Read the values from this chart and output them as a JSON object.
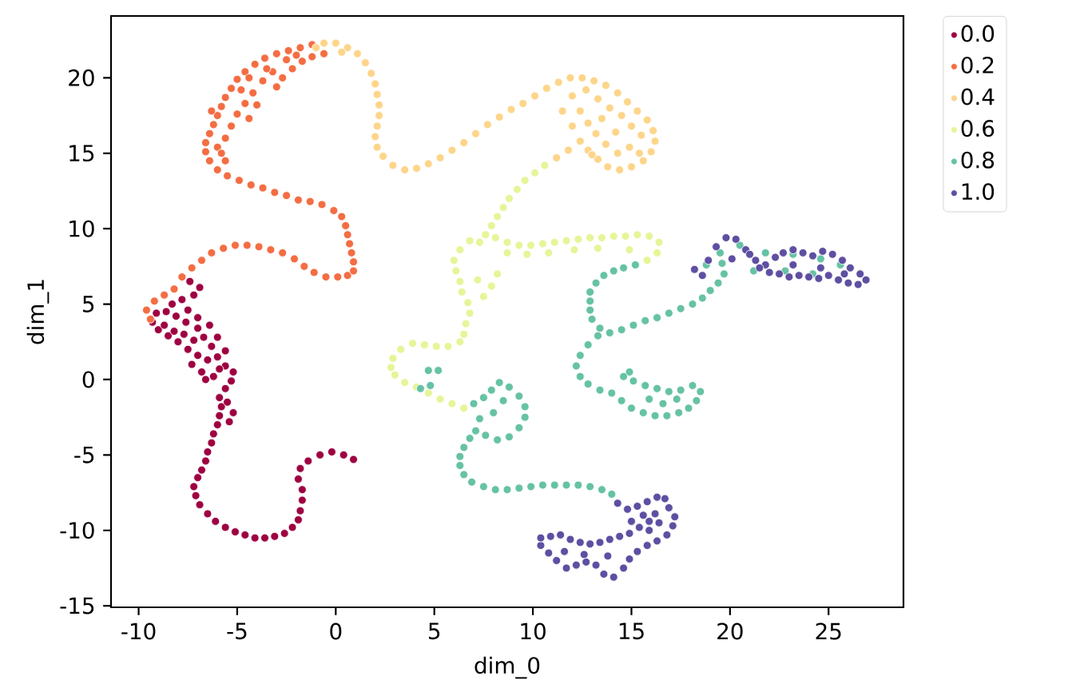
{
  "chart_data": {
    "type": "scatter",
    "xlabel": "dim_0",
    "ylabel": "dim_1",
    "xlim": [
      -11.4,
      28.8
    ],
    "ylim": [
      -15.1,
      24.1
    ],
    "xticks": [
      -10,
      -5,
      0,
      5,
      10,
      15,
      20,
      25
    ],
    "yticks": [
      -15,
      -10,
      -5,
      0,
      5,
      10,
      15,
      20
    ],
    "legend": "top right",
    "marker": "circle",
    "series": [
      {
        "name": "0.0",
        "color": "#9e0142",
        "x": [
          0.9,
          0.4,
          -0.2,
          -0.8,
          -1.4,
          -1.8,
          -1.9,
          -1.7,
          -1.7,
          -1.8,
          -1.9,
          -2.2,
          -2.6,
          -3.1,
          -3.6,
          -4.1,
          -4.6,
          -5.1,
          -5.6,
          -6.1,
          -6.5,
          -6.9,
          -7.1,
          -7.2,
          -7.0,
          -6.8,
          -6.6,
          -6.5,
          -6.3,
          -6.2,
          -6.0,
          -5.9,
          -5.8,
          -5.9,
          -5.5,
          -5.2,
          -5.4,
          -5.6,
          -5.3,
          -5.2,
          -5.6,
          -6.2,
          -6.8,
          -7.3,
          -7.0,
          -6.5,
          -6.0,
          -5.6,
          -6.3,
          -7.5,
          -8.0,
          -8.5,
          -9.0,
          -9.3,
          -8.7,
          -8.2,
          -7.7,
          -7.2,
          -6.7,
          -7.0,
          -7.6,
          -8.1,
          -8.6,
          -9.1,
          -7.5,
          -7.0,
          -6.4,
          -6.0,
          -7.8,
          -7.2,
          -6.9,
          -7.4,
          -8.3,
          -6.6,
          -5.9
        ],
        "values": [
          -5.3,
          -5.0,
          -4.8,
          -5.0,
          -5.4,
          -5.9,
          -6.6,
          -7.3,
          -8.0,
          -8.7,
          -9.3,
          -9.8,
          -10.2,
          -10.4,
          -10.5,
          -10.5,
          -10.3,
          -10.1,
          -9.8,
          -9.4,
          -8.9,
          -8.3,
          -7.7,
          -7.1,
          -6.5,
          -6.0,
          -5.4,
          -4.8,
          -4.2,
          -3.6,
          -3.0,
          -2.4,
          -1.8,
          -1.2,
          -1.5,
          -2.2,
          -2.8,
          -0.6,
          -0.1,
          0.5,
          0.9,
          0.2,
          0.5,
          1.0,
          1.6,
          1.3,
          1.5,
          1.9,
          2.2,
          2.0,
          2.5,
          2.9,
          3.3,
          3.8,
          3.6,
          3.2,
          3.0,
          2.6,
          2.8,
          3.4,
          3.8,
          4.2,
          4.5,
          4.4,
          4.6,
          4.1,
          3.6,
          2.8,
          5.3,
          5.6,
          6.1,
          6.5,
          5.0,
          0.0,
          0.7
        ]
      },
      {
        "name": "0.2",
        "color": "#f46d43",
        "x": [
          -9.4,
          -9.6,
          -9.2,
          -8.7,
          -8.2,
          -7.8,
          -7.3,
          -6.8,
          -6.3,
          -5.7,
          -5.1,
          -4.5,
          -3.9,
          -3.3,
          -2.7,
          -2.1,
          -1.6,
          -1.1,
          -0.5,
          0.1,
          0.6,
          0.9,
          0.9,
          0.8,
          0.7,
          0.6,
          0.5,
          0.3,
          -0.1,
          -0.7,
          -1.3,
          -1.9,
          -2.5,
          -3.1,
          -3.7,
          -4.3,
          -4.9,
          -5.5,
          -6.0,
          -6.4,
          -6.6,
          -6.6,
          -6.4,
          -6.2,
          -6.0,
          -5.8,
          -5.6,
          -5.3,
          -5.0,
          -4.6,
          -4.1,
          -3.6,
          -3.0,
          -2.4,
          -1.8,
          -1.2,
          -5.3,
          -5.0,
          -4.6,
          -4.2,
          -4.8,
          -3.7,
          -3.2,
          -2.7,
          -2.2,
          -1.7,
          -1.2,
          -0.6,
          -2.0,
          -3.5,
          -4.4,
          -5.6,
          -6.0,
          -5.8,
          -6.3,
          -4.0,
          -3.0,
          -2.5,
          -5.6,
          -4.4
        ],
        "values": [
          4.0,
          4.6,
          5.2,
          5.6,
          6.0,
          6.8,
          7.4,
          7.9,
          8.4,
          8.7,
          8.9,
          8.9,
          8.8,
          8.6,
          8.4,
          8.0,
          7.5,
          7.1,
          6.8,
          6.8,
          6.9,
          7.2,
          7.8,
          8.4,
          9.0,
          9.6,
          10.2,
          10.8,
          11.2,
          11.6,
          11.8,
          11.9,
          12.2,
          12.4,
          12.7,
          12.9,
          13.2,
          13.5,
          13.9,
          14.5,
          15.1,
          15.7,
          16.3,
          16.9,
          17.5,
          18.1,
          18.7,
          19.3,
          19.9,
          20.4,
          20.9,
          21.3,
          21.6,
          21.8,
          22.0,
          22.2,
          16.8,
          17.6,
          18.3,
          19.0,
          19.2,
          19.8,
          20.4,
          20.0,
          20.6,
          21.1,
          21.4,
          21.6,
          21.5,
          20.6,
          17.3,
          16.0,
          15.4,
          15.0,
          17.8,
          18.2,
          19.4,
          21.2,
          14.5,
          20.0
        ]
      },
      {
        "name": "0.4",
        "color": "#fdd58a",
        "x": [
          -0.6,
          0.0,
          0.6,
          1.1,
          1.5,
          1.8,
          2.0,
          2.1,
          2.2,
          2.2,
          2.1,
          2.0,
          2.1,
          2.4,
          2.9,
          3.5,
          4.1,
          4.7,
          5.3,
          5.9,
          6.5,
          7.1,
          7.7,
          8.3,
          8.9,
          9.5,
          10.1,
          10.7,
          11.3,
          11.9,
          12.5,
          13.1,
          13.7,
          14.3,
          14.8,
          15.3,
          15.8,
          16.1,
          16.2,
          16.0,
          15.6,
          15.0,
          14.4,
          13.8,
          13.3,
          12.8,
          12.4,
          11.8,
          11.2,
          12.0,
          12.7,
          13.3,
          13.9,
          14.5,
          15.0,
          15.5,
          14.9,
          14.3,
          13.7,
          13.2,
          12.8,
          12.4,
          13.5,
          14.2,
          15.4,
          12.0,
          11.5,
          -1.0,
          0.3,
          13.0
        ],
        "values": [
          22.3,
          22.3,
          22.0,
          21.6,
          21.0,
          20.3,
          19.6,
          18.9,
          18.2,
          17.5,
          16.8,
          16.1,
          15.4,
          14.8,
          14.2,
          13.9,
          14.0,
          14.3,
          14.7,
          15.2,
          15.7,
          16.3,
          16.9,
          17.4,
          17.9,
          18.3,
          18.8,
          19.3,
          19.7,
          20.0,
          20.0,
          19.8,
          19.5,
          19.0,
          18.4,
          17.8,
          17.2,
          16.5,
          15.8,
          15.1,
          14.5,
          14.1,
          13.9,
          14.1,
          14.6,
          15.2,
          15.8,
          15.2,
          14.7,
          18.8,
          19.2,
          18.6,
          18.0,
          17.5,
          16.8,
          16.2,
          15.4,
          15.0,
          15.6,
          16.3,
          17.0,
          17.8,
          17.3,
          16.4,
          15.0,
          16.8,
          17.8,
          22.0,
          21.7,
          14.9
        ]
      },
      {
        "name": "0.6",
        "color": "#e6f598",
        "x": [
          10.6,
          10.1,
          9.6,
          9.2,
          8.8,
          8.5,
          8.2,
          7.9,
          7.6,
          7.3,
          6.8,
          6.3,
          6.0,
          6.1,
          6.3,
          6.4,
          6.7,
          6.8,
          6.6,
          6.5,
          6.3,
          5.7,
          5.1,
          4.5,
          3.9,
          3.3,
          2.9,
          2.8,
          3.0,
          3.5,
          4.1,
          4.7,
          5.3,
          5.9,
          6.5,
          7.5,
          7.9,
          8.2,
          7.2,
          8.1,
          8.7,
          9.3,
          9.9,
          10.5,
          11.1,
          11.7,
          12.3,
          12.9,
          13.5,
          14.1,
          14.7,
          15.3,
          15.9,
          16.4,
          16.3,
          15.8,
          14.9,
          13.3,
          12.1,
          10.8,
          9.7,
          8.7
        ],
        "values": [
          14.2,
          13.7,
          13.2,
          12.6,
          12.0,
          11.4,
          10.8,
          10.2,
          9.6,
          9.1,
          9.2,
          8.6,
          7.9,
          7.2,
          6.5,
          5.8,
          5.1,
          4.4,
          3.7,
          3.0,
          2.5,
          2.2,
          2.2,
          2.3,
          2.4,
          2.0,
          1.4,
          0.8,
          0.3,
          -0.2,
          -0.5,
          -0.9,
          -1.3,
          -1.6,
          -1.9,
          5.5,
          6.2,
          7.0,
          6.6,
          9.4,
          9.1,
          8.9,
          8.9,
          9.0,
          9.1,
          9.2,
          9.3,
          9.4,
          9.4,
          9.5,
          9.5,
          9.6,
          9.5,
          9.1,
          8.4,
          7.9,
          8.6,
          8.7,
          8.6,
          8.4,
          8.3,
          8.4
        ]
      },
      {
        "name": "0.8",
        "color": "#66c2a5",
        "x": [
          15.2,
          14.6,
          14.1,
          13.6,
          13.2,
          12.9,
          12.9,
          12.9,
          13.0,
          13.4,
          13.9,
          14.5,
          15.1,
          15.7,
          16.3,
          16.9,
          17.5,
          18.1,
          18.6,
          19.0,
          19.4,
          19.7,
          19.6,
          19.5,
          13.3,
          12.8,
          12.4,
          12.2,
          12.4,
          12.8,
          13.4,
          14.0,
          14.5,
          15.0,
          15.6,
          16.2,
          16.8,
          17.4,
          17.9,
          18.3,
          18.5,
          18.1,
          17.5,
          16.9,
          16.3,
          15.7,
          15.1,
          14.9,
          15.9,
          16.6,
          17.3,
          14.6,
          7.0,
          7.5,
          7.9,
          8.3,
          8.8,
          9.3,
          9.6,
          9.6,
          9.3,
          8.8,
          8.2,
          7.6,
          7.1,
          6.8,
          6.5,
          6.3,
          6.3,
          6.5,
          6.9,
          7.5,
          8.1,
          8.7,
          9.3,
          9.9,
          10.5,
          11.1,
          11.7,
          12.3,
          12.9,
          13.5,
          14.0,
          7.3,
          8.0,
          8.5,
          20.5,
          21.8,
          23.2,
          24.6,
          25.6,
          22.8,
          21.2,
          18.8,
          24.2,
          4.7,
          5.2,
          4.8,
          4.3
        ],
        "values": [
          7.6,
          7.4,
          7.2,
          6.9,
          6.4,
          5.8,
          5.2,
          4.6,
          4.0,
          3.4,
          3.1,
          3.3,
          3.6,
          3.9,
          4.1,
          4.4,
          4.7,
          5.0,
          5.4,
          5.9,
          6.4,
          7.0,
          7.7,
          8.4,
          2.9,
          2.3,
          1.6,
          0.9,
          0.2,
          -0.3,
          -0.7,
          -0.9,
          -1.4,
          -1.9,
          -2.2,
          -2.4,
          -2.4,
          -2.2,
          -1.9,
          -1.4,
          -0.8,
          -0.4,
          -0.7,
          -0.8,
          -0.6,
          -0.4,
          -0.1,
          0.5,
          -1.3,
          -1.6,
          -1.3,
          0.2,
          -1.6,
          -1.2,
          -0.7,
          -0.2,
          -0.5,
          -1.1,
          -1.8,
          -2.5,
          -3.2,
          -3.8,
          -4.0,
          -3.7,
          -3.4,
          -3.9,
          -4.5,
          -5.1,
          -5.7,
          -6.3,
          -6.8,
          -7.1,
          -7.3,
          -7.3,
          -7.2,
          -7.1,
          -7.0,
          -7.0,
          -7.0,
          -7.0,
          -7.1,
          -7.3,
          -7.6,
          -2.6,
          -2.2,
          -1.4,
          8.9,
          8.4,
          8.3,
          8.0,
          7.6,
          7.2,
          7.2,
          7.6,
          7.0,
          0.6,
          0.6,
          -0.4,
          -0.6
        ]
      },
      {
        "name": "1.0",
        "color": "#5e4fa2",
        "x": [
          18.2,
          18.6,
          18.9,
          19.3,
          19.8,
          20.3,
          20.8,
          21.3,
          21.8,
          22.3,
          22.7,
          23.2,
          23.7,
          24.2,
          24.7,
          25.2,
          25.7,
          26.1,
          26.6,
          26.9,
          26.5,
          26.0,
          25.5,
          25.0,
          24.5,
          24.0,
          23.5,
          23.0,
          22.5,
          22.0,
          21.5,
          23.2,
          24.6,
          25.8,
          21.0,
          20.1,
          14.3,
          14.8,
          15.3,
          15.8,
          16.3,
          16.7,
          16.9,
          17.2,
          17.1,
          16.8,
          16.3,
          15.8,
          15.3,
          14.9,
          14.6,
          14.1,
          13.6,
          13.2,
          12.7,
          12.2,
          11.7,
          11.2,
          10.8,
          10.4,
          10.4,
          10.9,
          11.4,
          11.9,
          12.4,
          12.9,
          13.4,
          13.9,
          14.4,
          14.9,
          15.4,
          15.9,
          16.2,
          15.6,
          15.0,
          11.6,
          12.6,
          13.8,
          15.9,
          16.4
        ],
        "values": [
          7.3,
          6.9,
          7.9,
          8.8,
          9.4,
          9.3,
          8.6,
          7.9,
          7.6,
          8.1,
          8.4,
          8.6,
          8.4,
          8.2,
          8.5,
          8.3,
          7.9,
          7.4,
          7.0,
          6.6,
          6.3,
          6.4,
          6.6,
          6.9,
          6.7,
          6.8,
          6.9,
          6.8,
          7.0,
          7.1,
          7.4,
          7.6,
          7.4,
          7.0,
          8.3,
          8.0,
          -8.2,
          -8.6,
          -8.4,
          -8.1,
          -7.8,
          -7.9,
          -8.5,
          -9.1,
          -9.7,
          -10.3,
          -10.7,
          -11.0,
          -11.4,
          -11.9,
          -12.5,
          -13.1,
          -12.9,
          -12.3,
          -12.1,
          -12.3,
          -12.5,
          -12.0,
          -11.5,
          -11.0,
          -10.5,
          -10.4,
          -10.3,
          -10.6,
          -10.8,
          -10.9,
          -10.8,
          -10.6,
          -10.4,
          -10.2,
          -9.8,
          -9.4,
          -8.9,
          -9.0,
          -9.4,
          -11.4,
          -11.6,
          -11.7,
          -10.0,
          -9.5
        ]
      }
    ]
  }
}
